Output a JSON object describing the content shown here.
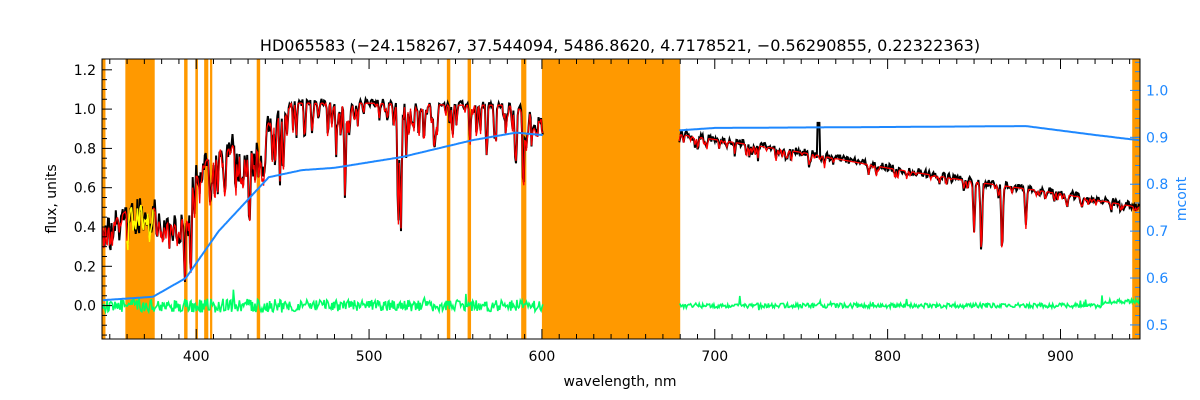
{
  "chart_data": {
    "type": "line",
    "title": "HD065583   (−24.158267, 37.544094, 5486.8620, 4.7178521, −0.56290855, 0.22322363)",
    "xlabel": "wavelength, nm",
    "ylabel": "flux, units",
    "ylabel_right": "mcont",
    "xlim": [
      345.5,
      946
    ],
    "ylim": [
      -0.17,
      1.255
    ],
    "ylim_right": [
      0.47,
      1.067
    ],
    "x_ticks": [
      400,
      500,
      600,
      700,
      800,
      900
    ],
    "x_tick_labels": [
      "400",
      "500",
      "600",
      "700",
      "800",
      "900"
    ],
    "y_ticks": [
      0.0,
      0.2,
      0.4,
      0.6,
      0.8,
      1.0,
      1.2
    ],
    "y_tick_labels": [
      "0.0",
      "0.2",
      "0.4",
      "0.6",
      "0.8",
      "1.0",
      "1.2"
    ],
    "y_right_ticks": [
      0.5,
      0.6,
      0.7,
      0.8,
      0.9,
      1.0
    ],
    "y_right_tick_labels": [
      "0.5",
      "0.6",
      "0.7",
      "0.8",
      "0.9",
      "1.0"
    ],
    "grid": false,
    "colors": {
      "observed": "#000000",
      "model": "#FF0000",
      "masked": "#FFFF00",
      "residual": "#00FF66",
      "mcont": "#1E88FF",
      "mask_band": "#FF9900"
    },
    "masked_bands_nm": [
      [
        345.5,
        347.5
      ],
      [
        359,
        376
      ],
      [
        393,
        395
      ],
      [
        399.5,
        401
      ],
      [
        404.6,
        407
      ],
      [
        408,
        409.3
      ],
      [
        435,
        437
      ],
      [
        545,
        547
      ],
      [
        557,
        559
      ],
      [
        588,
        591
      ],
      [
        600,
        680
      ],
      [
        941.5,
        946
      ]
    ],
    "flux_continuum": {
      "x": [
        347,
        355,
        365,
        375,
        380,
        390,
        395,
        400,
        410,
        420,
        430,
        435,
        445,
        455,
        500,
        550,
        580,
        600,
        680,
        700,
        750,
        800,
        850,
        900,
        945
      ],
      "y": [
        0.42,
        0.45,
        0.52,
        0.5,
        0.45,
        0.4,
        0.55,
        0.68,
        0.78,
        0.82,
        0.78,
        0.82,
        0.98,
        1.03,
        1.03,
        1.02,
        1.02,
        0.96,
        0.87,
        0.845,
        0.78,
        0.7,
        0.63,
        0.57,
        0.5
      ]
    },
    "strong_lines": [
      {
        "nm": 393.4,
        "min_flux": 0.12
      },
      {
        "nm": 396.8,
        "min_flux": 0.13
      },
      {
        "nm": 430.8,
        "min_flux": 0.4
      },
      {
        "nm": 486.1,
        "min_flux": 0.55
      },
      {
        "nm": 516.9,
        "min_flux": 0.4
      },
      {
        "nm": 518.4,
        "min_flux": 0.38
      },
      {
        "nm": 589.3,
        "min_flux": 0.58
      },
      {
        "nm": 850,
        "min_flux": 0.37
      },
      {
        "nm": 854.2,
        "min_flux": 0.27
      },
      {
        "nm": 866.2,
        "min_flux": 0.27
      },
      {
        "nm": 880,
        "min_flux": 0.39
      }
    ],
    "mcont": {
      "x": [
        347,
        375,
        394,
        413,
        442,
        461,
        480,
        519,
        560,
        585,
        600,
        680,
        700,
        800,
        880,
        920,
        945
      ],
      "y": [
        0.553,
        0.56,
        0.6,
        0.7,
        0.815,
        0.83,
        0.835,
        0.858,
        0.894,
        0.91,
        0.905,
        0.915,
        0.92,
        0.922,
        0.924,
        0.905,
        0.894
      ]
    },
    "residual_level": 0.0
  }
}
